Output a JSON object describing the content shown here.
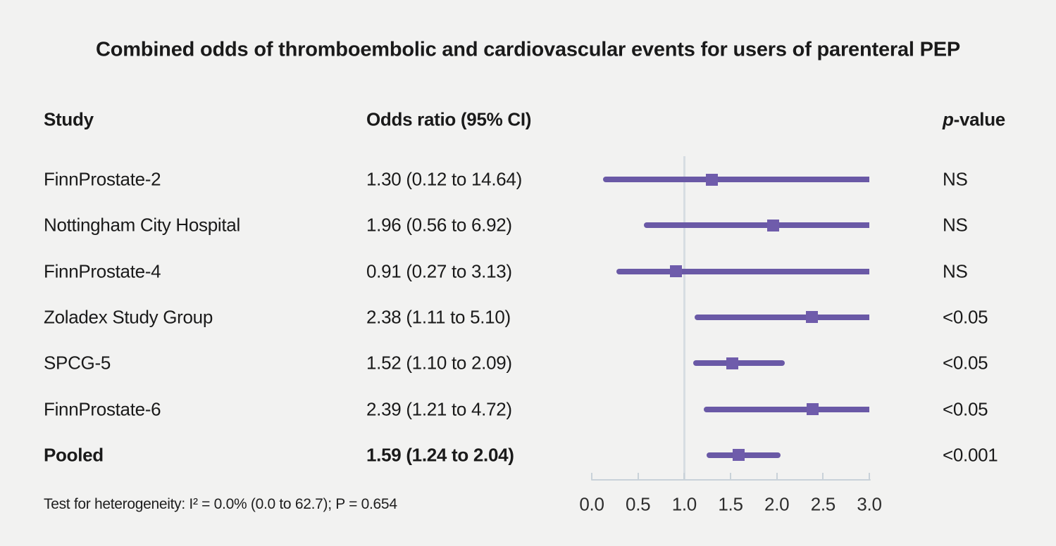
{
  "title": "Combined odds of thromboembolic and cardiovascular events for users of parenteral PEP",
  "headers": {
    "study": "Study",
    "odds_ratio": "Odds ratio (95% CI)",
    "p_italic": "p",
    "p_rest": "-value"
  },
  "footer": "Test for heterogeneity: I² = 0.0% (0.0 to 62.7); P = 0.654",
  "colors": {
    "background": "#f2f2f1",
    "text": "#1a1a1a",
    "ci_line_purple": "#6a59a6",
    "marker_purple": "#6f5cab",
    "reference_line": "#d7dde2",
    "axis_line": "#c9d2d9"
  },
  "chart_data": {
    "type": "scatter",
    "subtype": "forest-plot",
    "title": "Combined odds of thromboembolic and cardiovascular events for users of parenteral PEP",
    "xlabel": "",
    "ylabel": "",
    "xlim": [
      0.0,
      3.0
    ],
    "x_ticks": [
      0.0,
      0.5,
      1.0,
      1.5,
      2.0,
      2.5,
      3.0
    ],
    "x_tick_labels": [
      "0.0",
      "0.5",
      "1.0",
      "1.5",
      "2.0",
      "2.5",
      "3.0"
    ],
    "reference_line_x": 1.0,
    "ci_clipped_at": 3.0,
    "grid": false,
    "legend": "none",
    "rows": [
      {
        "study": "FinnProstate-2",
        "or_text": "1.30 (0.12 to 14.64)",
        "estimate": 1.3,
        "ci_low": 0.12,
        "ci_high": 14.64,
        "p_value": "NS",
        "bold": false
      },
      {
        "study": "Nottingham City Hospital",
        "or_text": "1.96 (0.56 to 6.92)",
        "estimate": 1.96,
        "ci_low": 0.56,
        "ci_high": 6.92,
        "p_value": "NS",
        "bold": false
      },
      {
        "study": "FinnProstate-4",
        "or_text": "0.91 (0.27 to 3.13)",
        "estimate": 0.91,
        "ci_low": 0.27,
        "ci_high": 3.13,
        "p_value": "NS",
        "bold": false
      },
      {
        "study": "Zoladex Study Group",
        "or_text": "2.38 (1.11 to 5.10)",
        "estimate": 2.38,
        "ci_low": 1.11,
        "ci_high": 5.1,
        "p_value": "<0.05",
        "bold": false
      },
      {
        "study": "SPCG-5",
        "or_text": "1.52 (1.10 to 2.09)",
        "estimate": 1.52,
        "ci_low": 1.1,
        "ci_high": 2.09,
        "p_value": "<0.05",
        "bold": false
      },
      {
        "study": "FinnProstate-6",
        "or_text": "2.39 (1.21 to 4.72)",
        "estimate": 2.39,
        "ci_low": 1.21,
        "ci_high": 4.72,
        "p_value": "<0.05",
        "bold": false
      },
      {
        "study": "Pooled",
        "or_text": "1.59 (1.24 to 2.04)",
        "estimate": 1.59,
        "ci_low": 1.24,
        "ci_high": 2.04,
        "p_value": "<0.001",
        "bold": true
      }
    ],
    "heterogeneity_note": "Test for heterogeneity: I² = 0.0% (0.0 to 62.7); P = 0.654"
  }
}
